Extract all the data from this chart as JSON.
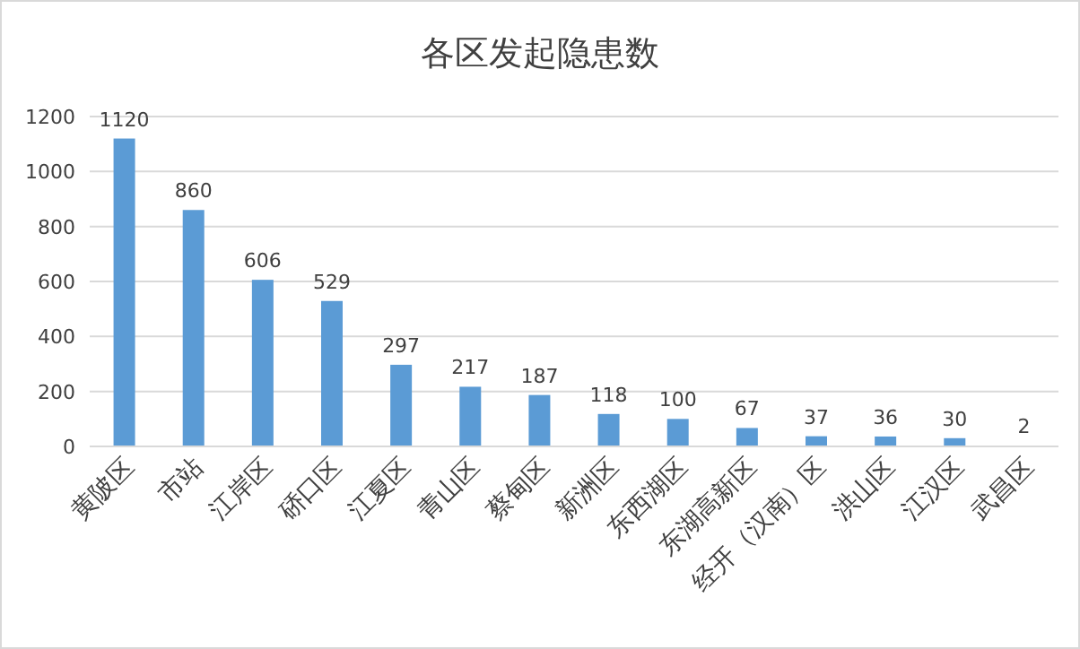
{
  "chart_data": {
    "type": "bar",
    "title": "各区发起隐患数",
    "categories": [
      "黄陂区",
      "市站",
      "江岸区",
      "硚口区",
      "江夏区",
      "青山区",
      "蔡甸区",
      "新洲区",
      "东西湖区",
      "东湖高新区",
      "经开（汉南）区",
      "洪山区",
      "江汉区",
      "武昌区"
    ],
    "values": [
      1120,
      860,
      606,
      529,
      297,
      217,
      187,
      118,
      100,
      67,
      37,
      36,
      30,
      2
    ],
    "color": "#5b9bd5",
    "ylim": [
      0,
      1200
    ],
    "yticks": [
      0,
      200,
      400,
      600,
      800,
      1000,
      1200
    ],
    "grid": "y",
    "data_labels": true
  }
}
